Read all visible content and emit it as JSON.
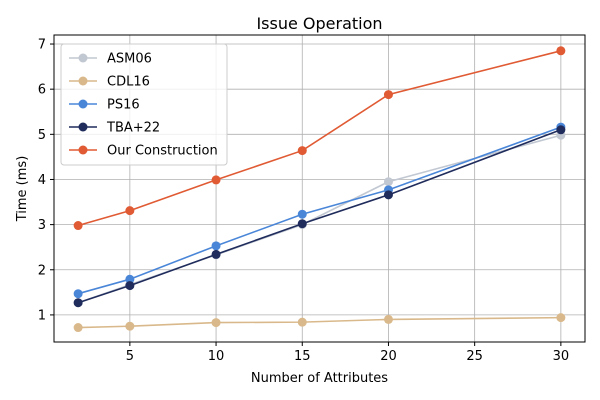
{
  "chart_data": {
    "type": "line",
    "title": "Issue Operation",
    "xlabel": "Number of Attributes",
    "ylabel": "Time (ms)",
    "x": [
      2,
      5,
      10,
      15,
      20,
      30
    ],
    "xlim": [
      0.6,
      31.4
    ],
    "ylim": [
      0.4,
      7.2
    ],
    "xticks": [
      5,
      10,
      15,
      20,
      25,
      30
    ],
    "yticks": [
      1,
      2,
      3,
      4,
      5,
      6,
      7
    ],
    "grid": true,
    "legend_position": "top-left",
    "series": [
      {
        "name": "ASM06",
        "color": "#c2c8d2",
        "values": [
          1.27,
          1.67,
          2.33,
          3.0,
          3.95,
          4.98
        ]
      },
      {
        "name": "CDL16",
        "color": "#d9b98b",
        "values": [
          0.72,
          0.75,
          0.83,
          0.84,
          0.9,
          0.94
        ]
      },
      {
        "name": "PS16",
        "color": "#4a86d8",
        "values": [
          1.47,
          1.79,
          2.53,
          3.23,
          3.77,
          5.16
        ]
      },
      {
        "name": "TBA+22",
        "color": "#1f2c5c",
        "values": [
          1.27,
          1.65,
          2.34,
          3.02,
          3.66,
          5.1
        ]
      },
      {
        "name": "Our Construction",
        "color": "#e05a33",
        "values": [
          2.98,
          3.31,
          3.99,
          4.64,
          5.88,
          6.85
        ]
      }
    ]
  }
}
